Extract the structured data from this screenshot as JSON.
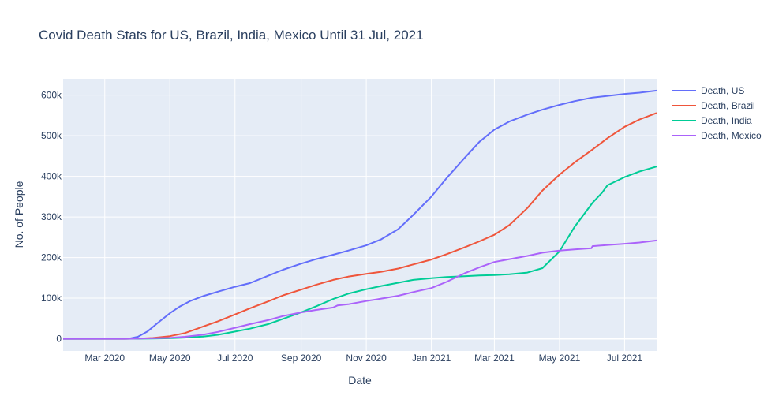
{
  "chart_data": {
    "type": "line",
    "title": "Covid Death Stats for US, Brazil, India, Mexico Until 31 Jul, 2021",
    "xlabel": "Date",
    "ylabel": "No. of People",
    "xlim": [
      "2020-01-22",
      "2021-07-31"
    ],
    "ylim": [
      -30000,
      640000
    ],
    "x_ticks": [
      {
        "date": "2020-03-01",
        "label": "Mar 2020"
      },
      {
        "date": "2020-05-01",
        "label": "May 2020"
      },
      {
        "date": "2020-07-01",
        "label": "Jul 2020"
      },
      {
        "date": "2020-09-01",
        "label": "Sep 2020"
      },
      {
        "date": "2020-11-01",
        "label": "Nov 2020"
      },
      {
        "date": "2021-01-01",
        "label": "Jan 2021"
      },
      {
        "date": "2021-03-01",
        "label": "Mar 2021"
      },
      {
        "date": "2021-05-01",
        "label": "May 2021"
      },
      {
        "date": "2021-07-01",
        "label": "Jul 2021"
      }
    ],
    "y_ticks": [
      {
        "value": 0,
        "label": "0"
      },
      {
        "value": 100000,
        "label": "100k"
      },
      {
        "value": 200000,
        "label": "200k"
      },
      {
        "value": 300000,
        "label": "300k"
      },
      {
        "value": 400000,
        "label": "400k"
      },
      {
        "value": 500000,
        "label": "500k"
      },
      {
        "value": 600000,
        "label": "600k"
      }
    ],
    "grid": true,
    "legend_position": "top-right",
    "series": [
      {
        "name": "Death, US",
        "color": "#636efa",
        "points": [
          [
            "2020-01-22",
            0
          ],
          [
            "2020-03-15",
            100
          ],
          [
            "2020-03-25",
            1000
          ],
          [
            "2020-04-01",
            5000
          ],
          [
            "2020-04-10",
            18000
          ],
          [
            "2020-04-20",
            40000
          ],
          [
            "2020-05-01",
            63000
          ],
          [
            "2020-05-10",
            79000
          ],
          [
            "2020-05-20",
            93000
          ],
          [
            "2020-06-01",
            105000
          ],
          [
            "2020-06-15",
            116000
          ],
          [
            "2020-07-01",
            128000
          ],
          [
            "2020-07-15",
            137000
          ],
          [
            "2020-08-01",
            155000
          ],
          [
            "2020-08-15",
            170000
          ],
          [
            "2020-09-01",
            185000
          ],
          [
            "2020-09-15",
            196000
          ],
          [
            "2020-10-01",
            207000
          ],
          [
            "2020-10-15",
            217000
          ],
          [
            "2020-11-01",
            230000
          ],
          [
            "2020-11-15",
            245000
          ],
          [
            "2020-12-01",
            270000
          ],
          [
            "2020-12-15",
            305000
          ],
          [
            "2021-01-01",
            350000
          ],
          [
            "2021-01-15",
            395000
          ],
          [
            "2021-02-01",
            445000
          ],
          [
            "2021-02-15",
            485000
          ],
          [
            "2021-03-01",
            515000
          ],
          [
            "2021-03-15",
            535000
          ],
          [
            "2021-04-01",
            552000
          ],
          [
            "2021-04-15",
            564000
          ],
          [
            "2021-05-01",
            576000
          ],
          [
            "2021-05-15",
            585000
          ],
          [
            "2021-06-01",
            594000
          ],
          [
            "2021-06-15",
            598000
          ],
          [
            "2021-07-01",
            603000
          ],
          [
            "2021-07-15",
            606000
          ],
          [
            "2021-07-31",
            611000
          ]
        ]
      },
      {
        "name": "Death, Brazil",
        "color": "#ef553b",
        "points": [
          [
            "2020-01-22",
            0
          ],
          [
            "2020-03-20",
            0
          ],
          [
            "2020-04-01",
            250
          ],
          [
            "2020-04-15",
            2000
          ],
          [
            "2020-05-01",
            6500
          ],
          [
            "2020-05-15",
            14000
          ],
          [
            "2020-06-01",
            30000
          ],
          [
            "2020-06-15",
            43000
          ],
          [
            "2020-07-01",
            60000
          ],
          [
            "2020-07-15",
            75000
          ],
          [
            "2020-08-01",
            92000
          ],
          [
            "2020-08-15",
            107000
          ],
          [
            "2020-09-01",
            121000
          ],
          [
            "2020-09-15",
            133000
          ],
          [
            "2020-10-01",
            145000
          ],
          [
            "2020-10-15",
            153000
          ],
          [
            "2020-11-01",
            160000
          ],
          [
            "2020-11-15",
            165000
          ],
          [
            "2020-12-01",
            173000
          ],
          [
            "2020-12-15",
            183000
          ],
          [
            "2021-01-01",
            195000
          ],
          [
            "2021-01-15",
            208000
          ],
          [
            "2021-02-01",
            225000
          ],
          [
            "2021-02-15",
            240000
          ],
          [
            "2021-03-01",
            256000
          ],
          [
            "2021-03-15",
            280000
          ],
          [
            "2021-04-01",
            322000
          ],
          [
            "2021-04-15",
            365000
          ],
          [
            "2021-05-01",
            404000
          ],
          [
            "2021-05-15",
            434000
          ],
          [
            "2021-06-01",
            466000
          ],
          [
            "2021-06-15",
            494000
          ],
          [
            "2021-07-01",
            522000
          ],
          [
            "2021-07-15",
            540000
          ],
          [
            "2021-07-31",
            556000
          ]
        ]
      },
      {
        "name": "Death, India",
        "color": "#00cc96",
        "points": [
          [
            "2020-01-22",
            0
          ],
          [
            "2020-03-20",
            0
          ],
          [
            "2020-04-15",
            400
          ],
          [
            "2020-05-01",
            1200
          ],
          [
            "2020-05-15",
            2800
          ],
          [
            "2020-06-01",
            5600
          ],
          [
            "2020-06-15",
            9900
          ],
          [
            "2020-07-01",
            17800
          ],
          [
            "2020-07-15",
            24900
          ],
          [
            "2020-08-01",
            36000
          ],
          [
            "2020-08-15",
            49000
          ],
          [
            "2020-09-01",
            65000
          ],
          [
            "2020-09-15",
            80000
          ],
          [
            "2020-10-01",
            98000
          ],
          [
            "2020-10-15",
            111000
          ],
          [
            "2020-11-01",
            122000
          ],
          [
            "2020-11-15",
            130000
          ],
          [
            "2020-12-01",
            138000
          ],
          [
            "2020-12-15",
            145000
          ],
          [
            "2021-01-01",
            149000
          ],
          [
            "2021-01-15",
            152000
          ],
          [
            "2021-02-01",
            154000
          ],
          [
            "2021-02-15",
            156000
          ],
          [
            "2021-03-01",
            157000
          ],
          [
            "2021-03-15",
            159000
          ],
          [
            "2021-04-01",
            163000
          ],
          [
            "2021-04-15",
            174000
          ],
          [
            "2021-05-01",
            215000
          ],
          [
            "2021-05-15",
            275000
          ],
          [
            "2021-06-01",
            335000
          ],
          [
            "2021-06-10",
            360000
          ],
          [
            "2021-06-15",
            378000
          ],
          [
            "2021-07-01",
            398000
          ],
          [
            "2021-07-15",
            412000
          ],
          [
            "2021-07-31",
            424000
          ]
        ]
      },
      {
        "name": "Death, Mexico",
        "color": "#ab63fa",
        "points": [
          [
            "2020-01-22",
            0
          ],
          [
            "2020-03-20",
            0
          ],
          [
            "2020-04-15",
            1300
          ],
          [
            "2020-05-01",
            2200
          ],
          [
            "2020-05-15",
            5000
          ],
          [
            "2020-06-01",
            10000
          ],
          [
            "2020-06-15",
            17000
          ],
          [
            "2020-07-01",
            27000
          ],
          [
            "2020-07-15",
            36000
          ],
          [
            "2020-08-01",
            46000
          ],
          [
            "2020-08-15",
            56000
          ],
          [
            "2020-09-01",
            65000
          ],
          [
            "2020-09-15",
            71000
          ],
          [
            "2020-10-01",
            77000
          ],
          [
            "2020-10-05",
            82000
          ],
          [
            "2020-10-15",
            85000
          ],
          [
            "2020-11-01",
            93000
          ],
          [
            "2020-11-15",
            99000
          ],
          [
            "2020-12-01",
            106000
          ],
          [
            "2020-12-15",
            115000
          ],
          [
            "2021-01-01",
            125000
          ],
          [
            "2021-01-15",
            140000
          ],
          [
            "2021-02-01",
            161000
          ],
          [
            "2021-02-15",
            176000
          ],
          [
            "2021-03-01",
            189000
          ],
          [
            "2021-03-15",
            196000
          ],
          [
            "2021-04-01",
            204000
          ],
          [
            "2021-04-15",
            212000
          ],
          [
            "2021-05-01",
            217000
          ],
          [
            "2021-05-15",
            220000
          ],
          [
            "2021-05-31",
            223000
          ],
          [
            "2021-06-01",
            228000
          ],
          [
            "2021-06-15",
            231000
          ],
          [
            "2021-07-01",
            234000
          ],
          [
            "2021-07-15",
            237000
          ],
          [
            "2021-07-31",
            242000
          ]
        ]
      }
    ]
  }
}
